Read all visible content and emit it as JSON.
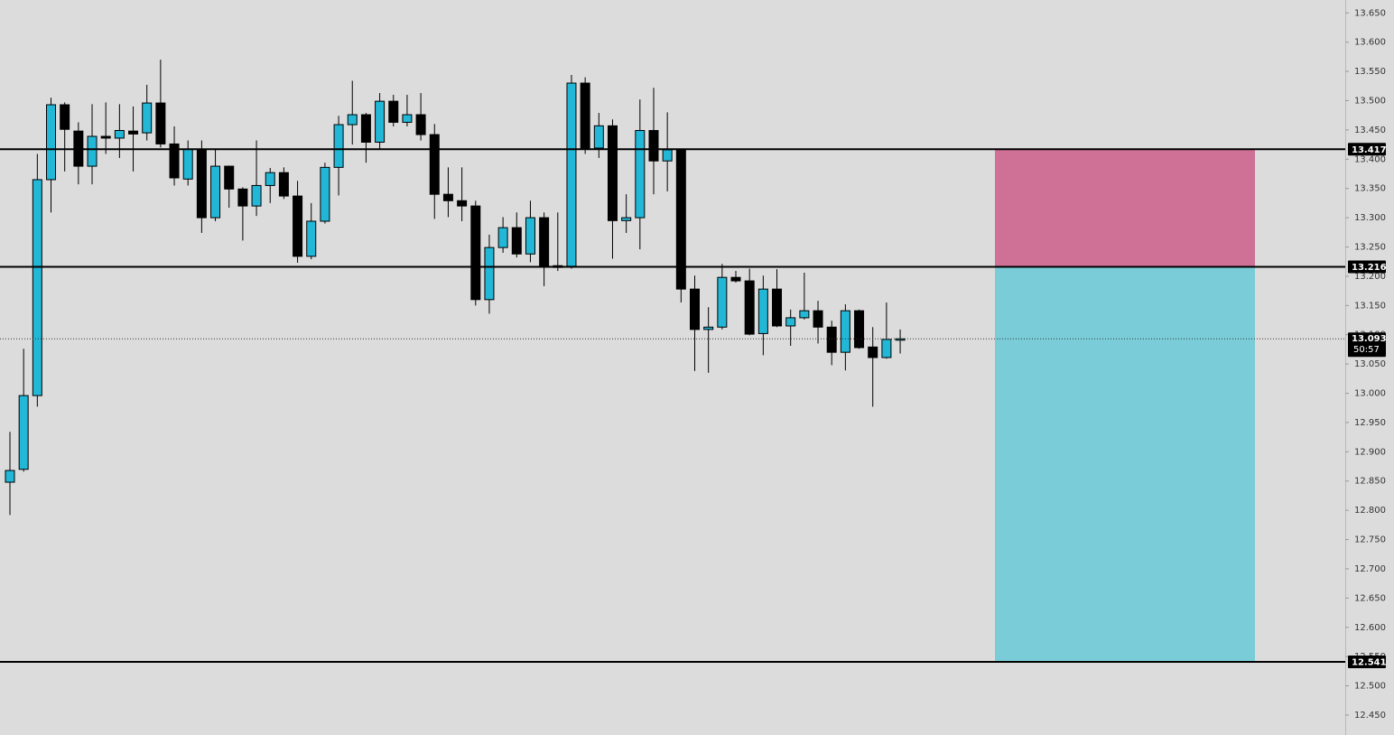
{
  "chart_data": {
    "type": "candlestick",
    "open": [
      12.848,
      12.87,
      12.996,
      13.365,
      13.493,
      13.448,
      13.388,
      13.439,
      13.436,
      13.448,
      13.445,
      13.496,
      13.426,
      13.366,
      13.417,
      13.3,
      13.388,
      13.349,
      13.32,
      13.355,
      13.377,
      13.337,
      13.234,
      13.294,
      13.386,
      13.459,
      13.476,
      13.429,
      13.499,
      13.463,
      13.476,
      13.442,
      13.34,
      13.329,
      13.32,
      13.16,
      13.249,
      13.283,
      13.238,
      13.3,
      13.215,
      13.217,
      13.53,
      13.419,
      13.457,
      13.295,
      13.3,
      13.449,
      13.397,
      13.417,
      13.178,
      13.109,
      13.113,
      13.198,
      13.192,
      13.102,
      13.178,
      13.115,
      13.129,
      13.141,
      13.113,
      13.07,
      13.141,
      13.079,
      13.061,
      13.093
    ],
    "high": [
      12.934,
      13.076,
      13.409,
      13.505,
      13.497,
      13.463,
      13.494,
      13.497,
      13.494,
      13.49,
      13.527,
      13.57,
      13.456,
      13.432,
      13.432,
      13.417,
      13.389,
      13.352,
      13.432,
      13.385,
      13.386,
      13.363,
      13.325,
      13.394,
      13.474,
      13.534,
      13.479,
      13.513,
      13.51,
      13.51,
      13.513,
      13.46,
      13.386,
      13.386,
      13.329,
      13.271,
      13.301,
      13.309,
      13.329,
      13.309,
      13.309,
      13.544,
      13.54,
      13.479,
      13.468,
      13.34,
      13.502,
      13.522,
      13.48,
      13.417,
      13.201,
      13.147,
      13.221,
      13.209,
      13.213,
      13.201,
      13.212,
      13.143,
      13.206,
      13.158,
      13.124,
      13.152,
      13.143,
      13.113,
      13.155,
      13.109
    ],
    "low": [
      12.792,
      12.866,
      12.977,
      13.309,
      13.379,
      13.357,
      13.357,
      13.409,
      13.402,
      13.379,
      13.432,
      13.42,
      13.355,
      13.355,
      13.274,
      13.294,
      13.317,
      13.261,
      13.303,
      13.325,
      13.332,
      13.223,
      13.229,
      13.29,
      13.338,
      13.425,
      13.394,
      13.417,
      13.456,
      13.456,
      13.432,
      13.298,
      13.301,
      13.294,
      13.15,
      13.136,
      13.24,
      13.232,
      13.224,
      13.183,
      13.209,
      13.213,
      13.409,
      13.402,
      13.23,
      13.274,
      13.246,
      13.34,
      13.345,
      13.155,
      13.038,
      13.035,
      13.109,
      13.189,
      13.099,
      13.065,
      13.113,
      13.081,
      13.126,
      13.085,
      13.048,
      13.039,
      13.076,
      12.977,
      13.059,
      13.068
    ],
    "close": [
      12.868,
      12.996,
      13.365,
      13.493,
      13.451,
      13.388,
      13.439,
      13.436,
      13.449,
      13.443,
      13.496,
      13.426,
      13.368,
      13.417,
      13.3,
      13.388,
      13.349,
      13.32,
      13.355,
      13.377,
      13.337,
      13.234,
      13.294,
      13.386,
      13.459,
      13.476,
      13.429,
      13.499,
      13.463,
      13.476,
      13.442,
      13.34,
      13.329,
      13.32,
      13.16,
      13.249,
      13.283,
      13.238,
      13.3,
      13.218,
      13.218,
      13.53,
      13.419,
      13.457,
      13.295,
      13.3,
      13.449,
      13.397,
      13.416,
      13.178,
      13.109,
      13.113,
      13.198,
      13.192,
      13.101,
      13.178,
      13.115,
      13.129,
      13.141,
      13.113,
      13.07,
      13.141,
      13.078,
      13.061,
      13.092,
      13.093
    ],
    "up_color": "#22b7d6",
    "down_color": "#000000",
    "ylim": [
      12.416,
      13.672
    ],
    "yticks": [
      {
        "value": 13.65,
        "label": "13.650"
      },
      {
        "value": 13.6,
        "label": "13.600"
      },
      {
        "value": 13.55,
        "label": "13.550"
      },
      {
        "value": 13.5,
        "label": "13.500"
      },
      {
        "value": 13.45,
        "label": "13.450"
      },
      {
        "value": 13.4,
        "label": "13.400"
      },
      {
        "value": 13.35,
        "label": "13.350"
      },
      {
        "value": 13.3,
        "label": "13.300"
      },
      {
        "value": 13.25,
        "label": "13.250"
      },
      {
        "value": 13.2,
        "label": "13.200"
      },
      {
        "value": 13.15,
        "label": "13.150"
      },
      {
        "value": 13.1,
        "label": "13.100"
      },
      {
        "value": 13.05,
        "label": "13.050"
      },
      {
        "value": 13.0,
        "label": "13.000"
      },
      {
        "value": 12.95,
        "label": "12.950"
      },
      {
        "value": 12.9,
        "label": "12.900"
      },
      {
        "value": 12.85,
        "label": "12.850"
      },
      {
        "value": 12.8,
        "label": "12.800"
      },
      {
        "value": 12.75,
        "label": "12.750"
      },
      {
        "value": 12.7,
        "label": "12.700"
      },
      {
        "value": 12.65,
        "label": "12.650"
      },
      {
        "value": 12.6,
        "label": "12.600"
      },
      {
        "value": 12.55,
        "label": "12.550"
      },
      {
        "value": 12.5,
        "label": "12.500"
      },
      {
        "value": 12.45,
        "label": "12.450"
      }
    ],
    "levels": [
      13.417,
      13.216,
      12.541
    ],
    "zone_colors": [
      "#cf7096",
      "#7acdd8"
    ],
    "current_price": 13.093,
    "countdown": "50:57"
  }
}
